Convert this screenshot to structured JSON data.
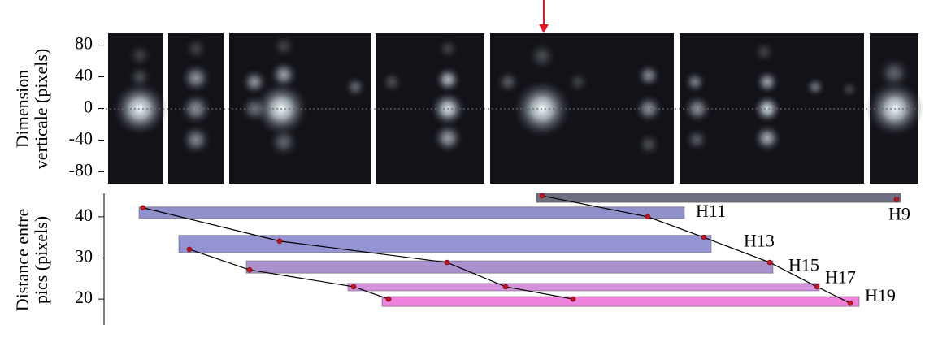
{
  "top_panel": {
    "ylabel": [
      "Dimension",
      "verticale (pixels)"
    ],
    "ylim": [
      -95,
      95
    ],
    "yticks": [
      80,
      40,
      0,
      -40,
      -80
    ]
  },
  "chart_data": {
    "type": "range-bar",
    "ylabel": [
      "Distance entre",
      "pics (pixels)"
    ],
    "xlim": [
      0,
      1000
    ],
    "ylim": [
      13.7,
      46.1
    ],
    "yticks": [
      40,
      30,
      20
    ],
    "bars": [
      {
        "name": "H9",
        "color": "#6f6f82",
        "y": 44.6,
        "thickness": 2.2,
        "start": 530,
        "end": 978
      },
      {
        "name": "H11",
        "color": "#9090cc",
        "y": 41.0,
        "thickness": 2.8,
        "start": 41,
        "end": 712
      },
      {
        "name": "H13",
        "color": "#9494d2",
        "y": 33.4,
        "thickness": 4.2,
        "start": 90,
        "end": 745
      },
      {
        "name": "H15",
        "color": "#aa92cf",
        "y": 27.8,
        "thickness": 3.0,
        "start": 173,
        "end": 821
      },
      {
        "name": "H17",
        "color": "#d492dc",
        "y": 22.9,
        "thickness": 1.8,
        "start": 298,
        "end": 878
      },
      {
        "name": "H19",
        "color": "#ee82dc",
        "y": 19.4,
        "thickness": 2.4,
        "start": 340,
        "end": 927
      }
    ],
    "chains": [
      {
        "x": [
          46,
          214,
          420,
          492,
          575
        ],
        "y": [
          42.2,
          34.1,
          28.9,
          23.0,
          20.0
        ]
      },
      {
        "x": [
          103,
          177,
          305,
          348
        ],
        "y": [
          32.1,
          27.1,
          23.0,
          20.0
        ]
      },
      {
        "x": [
          537,
          667,
          736,
          817,
          875,
          916
        ],
        "y": [
          45.1,
          40.0,
          35.0,
          28.9,
          23.0,
          19.0
        ]
      },
      {
        "x": [
          973
        ],
        "y": [
          44.2
        ]
      }
    ]
  }
}
